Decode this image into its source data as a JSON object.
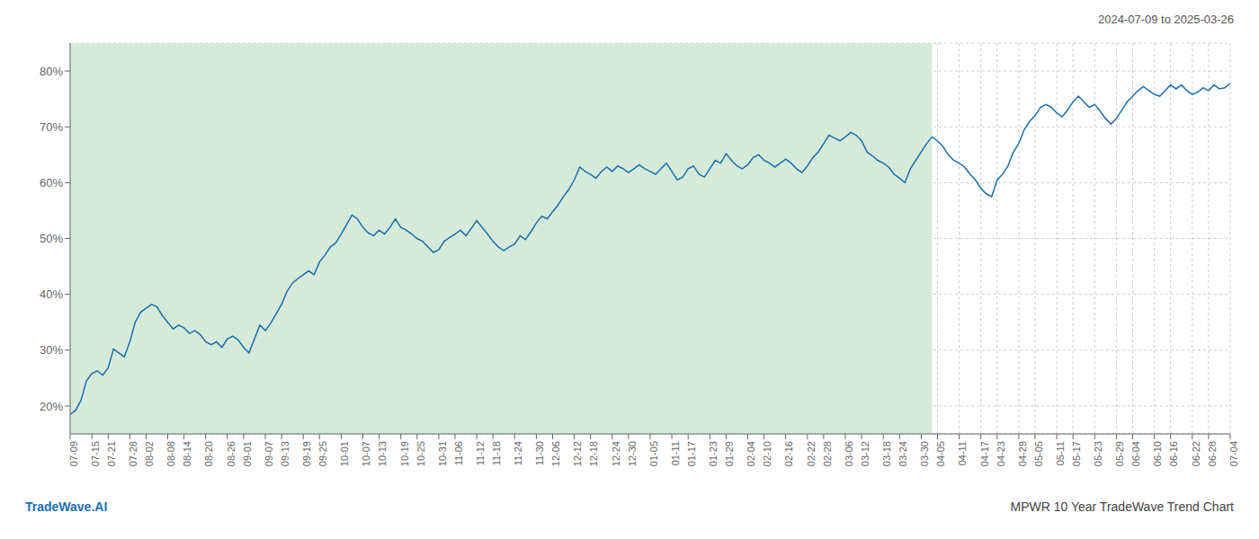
{
  "chart_data": {
    "type": "line",
    "title": "2024-07-09 to 2025-03-26",
    "annotations": [
      {
        "text": "TradeWave.AI",
        "color": "#1a6fb0"
      },
      {
        "text": "MPWR 10 Year TradeWave Trend Chart"
      }
    ],
    "color": "#1a6fb0",
    "shaded_region": {
      "from": 0,
      "to": 159,
      "color": "#d6ead9"
    },
    "ylim": [
      15,
      85
    ],
    "yticks": [
      {
        "value": 20,
        "label": "20%"
      },
      {
        "value": 30,
        "label": "30%"
      },
      {
        "value": 40,
        "label": "40%"
      },
      {
        "value": 50,
        "label": "50%"
      },
      {
        "value": 60,
        "label": "60%"
      },
      {
        "value": 70,
        "label": "70%"
      },
      {
        "value": 80,
        "label": "80%"
      }
    ],
    "grid": true,
    "categories": [
      "07-09",
      null,
      null,
      null,
      "07-15",
      null,
      null,
      "07-21",
      null,
      null,
      null,
      "07-28",
      null,
      null,
      "08-02",
      null,
      null,
      null,
      "08-08",
      null,
      null,
      "08-14",
      null,
      null,
      null,
      "08-20",
      null,
      null,
      null,
      "08-26",
      null,
      null,
      "09-01",
      null,
      null,
      null,
      "09-07",
      null,
      null,
      "09-13",
      null,
      null,
      null,
      "09-19",
      null,
      null,
      "09-25",
      null,
      null,
      null,
      "10-01",
      null,
      null,
      null,
      "10-07",
      null,
      null,
      "10-13",
      null,
      null,
      null,
      "10-19",
      null,
      null,
      "10-25",
      null,
      null,
      null,
      "10-31",
      null,
      null,
      "11-06",
      null,
      null,
      null,
      "11-12",
      null,
      null,
      "11-18",
      null,
      null,
      null,
      "11-24",
      null,
      null,
      null,
      "11-30",
      null,
      null,
      "12-06",
      null,
      null,
      null,
      "12-12",
      null,
      null,
      "12-18",
      null,
      null,
      null,
      "12-24",
      null,
      null,
      "12-30",
      null,
      null,
      null,
      "01-05",
      null,
      null,
      null,
      "01-11",
      null,
      null,
      "01-17",
      null,
      null,
      null,
      "01-23",
      null,
      null,
      "01-29",
      null,
      null,
      null,
      "02-04",
      null,
      null,
      "02-10",
      null,
      null,
      null,
      "02-16",
      null,
      null,
      null,
      "02-22",
      null,
      null,
      "02-28",
      null,
      null,
      null,
      "03-06",
      null,
      null,
      "03-12",
      null,
      null,
      null,
      "03-18",
      null,
      null,
      "03-24",
      null,
      null,
      null,
      "03-30",
      null,
      null,
      "04-05",
      null,
      null,
      null,
      "04-11",
      null,
      null,
      null,
      "04-17",
      null,
      null,
      "04-23",
      null,
      null,
      null,
      "04-29",
      null,
      null,
      "05-05",
      null,
      null,
      null,
      "05-11",
      null,
      null,
      "05-17",
      null,
      null,
      null,
      "05-23",
      null,
      null,
      null,
      "05-29",
      null,
      null,
      "06-04",
      null,
      null,
      null,
      "06-10",
      null,
      null,
      "06-16",
      null,
      null,
      null,
      "06-22",
      null,
      null,
      "06-28",
      null,
      null,
      null,
      "07-04"
    ],
    "values": [
      18.5,
      19.2,
      21.0,
      24.5,
      25.8,
      26.3,
      25.5,
      26.8,
      30.2,
      29.5,
      28.8,
      31.5,
      35.0,
      36.8,
      37.5,
      38.2,
      37.8,
      36.2,
      35.0,
      33.8,
      34.5,
      34.0,
      33.0,
      33.5,
      32.8,
      31.5,
      31.0,
      31.5,
      30.5,
      32.0,
      32.5,
      31.8,
      30.5,
      29.5,
      32.0,
      34.5,
      33.5,
      34.8,
      36.5,
      38.2,
      40.5,
      42.0,
      42.8,
      43.5,
      44.2,
      43.5,
      45.8,
      47.0,
      48.5,
      49.2,
      50.8,
      52.5,
      54.2,
      53.5,
      52.0,
      51.0,
      50.5,
      51.5,
      50.8,
      52.0,
      53.5,
      52.0,
      51.5,
      50.8,
      50.0,
      49.5,
      48.5,
      47.5,
      48.0,
      49.5,
      50.2,
      50.8,
      51.5,
      50.5,
      51.8,
      53.2,
      52.0,
      50.8,
      49.5,
      48.5,
      47.8,
      48.5,
      49.0,
      50.5,
      49.8,
      51.2,
      52.8,
      54.0,
      53.5,
      54.8,
      56.0,
      57.5,
      58.8,
      60.5,
      62.8,
      62.0,
      61.5,
      60.8,
      62.0,
      62.8,
      62.0,
      63.0,
      62.5,
      61.8,
      62.5,
      63.2,
      62.5,
      62.0,
      61.5,
      62.5,
      63.5,
      62.0,
      60.5,
      61.0,
      62.5,
      63.0,
      61.5,
      61.0,
      62.5,
      64.0,
      63.5,
      65.2,
      64.0,
      63.0,
      62.5,
      63.2,
      64.5,
      65.0,
      64.0,
      63.5,
      62.8,
      63.5,
      64.2,
      63.5,
      62.5,
      61.8,
      63.0,
      64.5,
      65.5,
      67.0,
      68.5,
      68.0,
      67.5,
      68.2,
      69.0,
      68.5,
      67.5,
      65.5,
      64.8,
      64.0,
      63.5,
      62.8,
      61.5,
      60.8,
      60.0,
      62.5,
      64.0,
      65.5,
      67.0,
      68.2,
      67.5,
      66.5,
      65.0,
      64.0,
      63.5,
      62.8,
      61.5,
      60.5,
      59.0,
      58.0,
      57.5,
      60.5,
      61.5,
      63.0,
      65.5,
      67.0,
      69.5,
      71.0,
      72.0,
      73.5,
      74.0,
      73.5,
      72.5,
      71.8,
      73.0,
      74.5,
      75.5,
      74.5,
      73.5,
      74.0,
      72.8,
      71.5,
      70.5,
      71.5,
      73.0,
      74.5,
      75.5,
      76.5,
      77.2,
      76.5,
      75.8,
      75.5,
      76.5,
      77.5,
      76.8,
      77.5,
      76.5,
      75.8,
      76.2,
      77.0,
      76.5,
      77.5,
      76.8,
      77.0,
      77.8
    ]
  }
}
